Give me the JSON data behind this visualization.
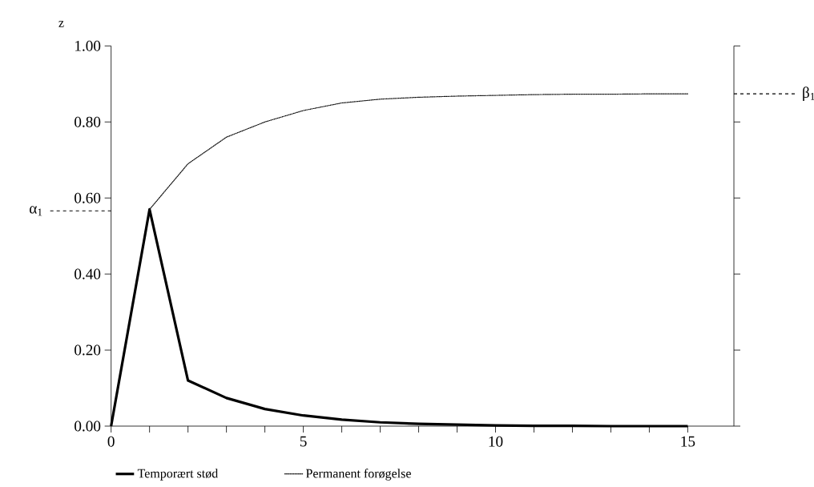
{
  "chart_data": {
    "type": "line",
    "ylabel": "z",
    "x": [
      0,
      1,
      2,
      3,
      4,
      5,
      6,
      7,
      8,
      9,
      10,
      11,
      12,
      13,
      14,
      15
    ],
    "series": [
      {
        "name": "Temporært stød",
        "color": "#000000",
        "line_style": "solid",
        "values": [
          0,
          0.57,
          0.12,
          0.074,
          0.045,
          0.028,
          0.017,
          0.01,
          0.006,
          0.004,
          0.002,
          0.001,
          0.001,
          0,
          0,
          0
        ]
      },
      {
        "name": "Permanent forøgelse",
        "color": "#000000",
        "line_style": "dotted",
        "x": [
          1,
          2,
          3,
          4,
          5,
          6,
          7,
          8,
          9,
          10,
          11,
          12,
          13,
          14,
          15
        ],
        "values": [
          0.57,
          0.69,
          0.76,
          0.8,
          0.83,
          0.85,
          0.86,
          0.865,
          0.868,
          0.87,
          0.872,
          0.873,
          0.873,
          0.874,
          0.874
        ]
      }
    ],
    "xlim": [
      0,
      16.2
    ],
    "xticks": [
      0,
      {
        "value": 1,
        "label": null
      },
      {
        "value": 2,
        "label": null
      },
      {
        "value": 3,
        "label": null
      },
      {
        "value": 4,
        "label": null
      },
      5,
      {
        "value": 6,
        "label": null
      },
      {
        "value": 7,
        "label": null
      },
      {
        "value": 8,
        "label": null
      },
      {
        "value": 9,
        "label": null
      },
      10,
      {
        "value": 11,
        "label": null
      },
      {
        "value": 12,
        "label": null
      },
      {
        "value": 13,
        "label": null
      },
      {
        "value": 14,
        "label": null
      },
      15
    ],
    "ylim": [
      0,
      1
    ],
    "yticks": [
      {
        "value": 0,
        "label": "0.00"
      },
      {
        "value": 0.2,
        "label": "0.20"
      },
      {
        "value": 0.4,
        "label": "0.40"
      },
      {
        "value": 0.6,
        "label": "0.60"
      },
      {
        "value": 0.8,
        "label": "0.80"
      },
      {
        "value": 1,
        "label": "1.00"
      }
    ],
    "ref_lines": [
      {
        "axis": "y",
        "value": 0.566,
        "label": "α$_{1}$",
        "line_style": "dashed"
      },
      {
        "axis": "y",
        "value": 0.874,
        "label": "β$_{1}$",
        "line_style": "dashed"
      }
    ],
    "marker": "none",
    "grid": false,
    "legend": "bottom"
  }
}
